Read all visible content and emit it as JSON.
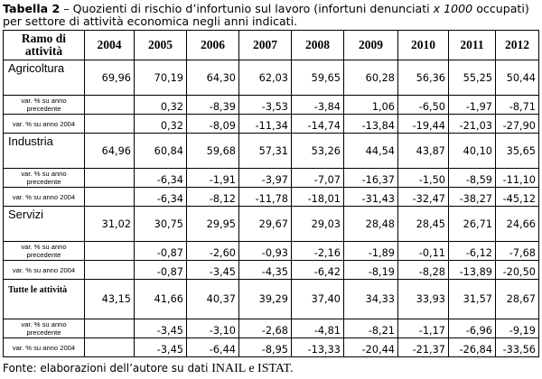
{
  "caption": {
    "label": "Tabella 2",
    "dash": " –  ",
    "part1": "Quozienti di rischio d’infortunio sul lavoro (infortuni denunciati ",
    "emph": "x 1000",
    "part2": " occupati) per settore di attività economica negli anni indicati."
  },
  "table": {
    "corner": "Ramo di attività",
    "years": [
      "2004",
      "2005",
      "2006",
      "2007",
      "2008",
      "2009",
      "2010",
      "2011",
      "2012"
    ],
    "sectors": [
      {
        "name": "Agricoltura",
        "values": [
          "69,96",
          "70,19",
          "64,30",
          "62,03",
          "59,65",
          "60,28",
          "56,36",
          "55,25",
          "50,44"
        ],
        "prev_label": "var. % su anno precedente",
        "prev": [
          "",
          "0,32",
          "-8,39",
          "-3,53",
          "-3,84",
          "1,06",
          "-6,50",
          "-1,97",
          "-8,71"
        ],
        "base_label": "var. % su anno 2004",
        "base": [
          "",
          "0,32",
          "-8,09",
          "-11,34",
          "-14,74",
          "-13,84",
          "-19,44",
          "-21,03",
          "-27,90"
        ]
      },
      {
        "name": "Industria",
        "values": [
          "64,96",
          "60,84",
          "59,68",
          "57,31",
          "53,26",
          "44,54",
          "43,87",
          "40,10",
          "35,65"
        ],
        "prev_label": "var. % su anno precedente",
        "prev": [
          "",
          "-6,34",
          "-1,91",
          "-3,97",
          "-7,07",
          "-16,37",
          "-1,50",
          "-8,59",
          "-11,10"
        ],
        "base_label": "var. % su anno 2004",
        "base": [
          "",
          "-6,34",
          "-8,12",
          "-11,78",
          "-18,01",
          "-31,43",
          "-32,47",
          "-38,27",
          "-45,12"
        ]
      },
      {
        "name": "Servizi",
        "values": [
          "31,02",
          "30,75",
          "29,95",
          "29,67",
          "29,03",
          "28,48",
          "28,45",
          "26,71",
          "24,66"
        ],
        "prev_label": "var. % su anno precedente",
        "prev": [
          "",
          "-0,87",
          "-2,60",
          "-0,93",
          "-2,16",
          "-1,89",
          "-0,11",
          "-6,12",
          "-7,68"
        ],
        "base_label": "var. % su anno 2004",
        "base": [
          "",
          "-0,87",
          "-3,45",
          "-4,35",
          "-6,42",
          "-8,19",
          "-8,28",
          "-13,89",
          "-20,50"
        ]
      },
      {
        "name": "Tutte le attività",
        "values": [
          "43,15",
          "41,66",
          "40,37",
          "39,29",
          "37,40",
          "34,33",
          "33,93",
          "31,57",
          "28,67"
        ],
        "prev_label": "var. % su anno precedente",
        "prev": [
          "",
          "-3,45",
          "-3,10",
          "-2,68",
          "-4,81",
          "-8,21",
          "-1,17",
          "-6,96",
          "-9,19"
        ],
        "base_label": "var. % su anno 2004",
        "base": [
          "",
          "-3,45",
          "-6,44",
          "-8,95",
          "-13,33",
          "-20,44",
          "-21,37",
          "-26,84",
          "-33,56"
        ]
      }
    ]
  },
  "source": {
    "text": "Fonte: elaborazioni dell’autore su dati ",
    "org": "INAIL e ISTAT."
  }
}
